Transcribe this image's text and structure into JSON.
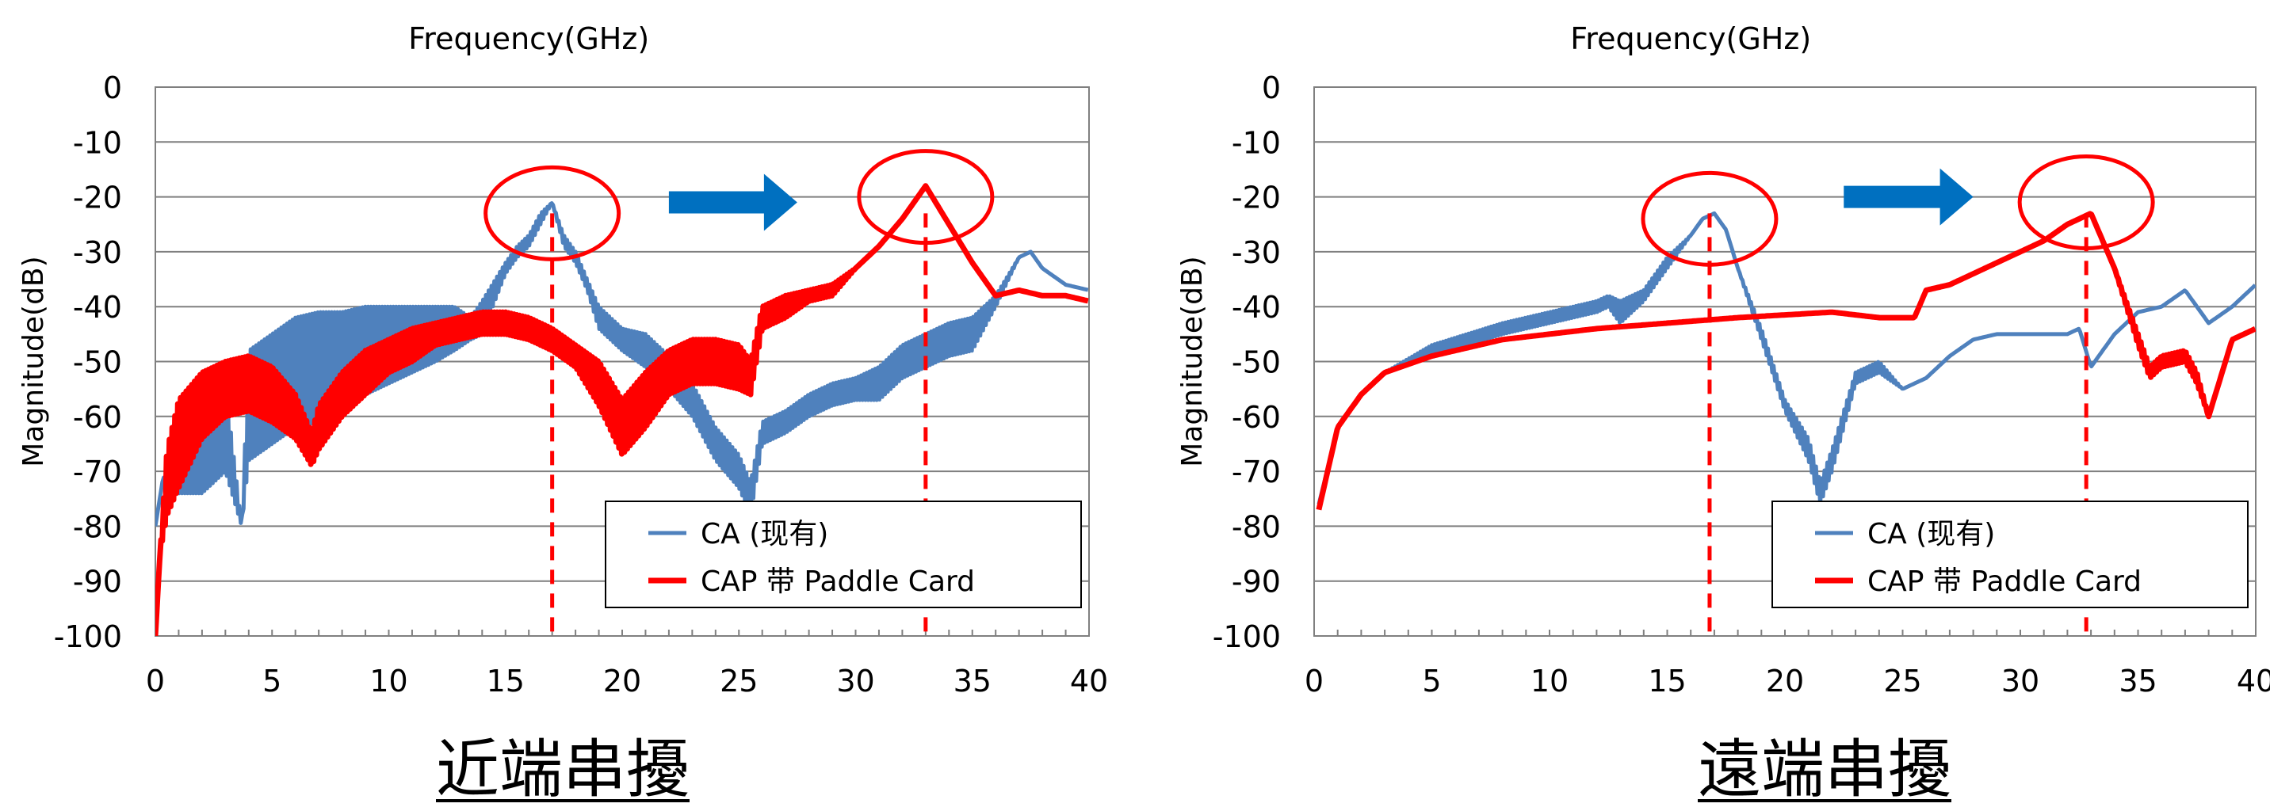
{
  "chart_data": [
    {
      "type": "line",
      "xlabel": "Frequency(GHz)",
      "ylabel": "Magnitude(dB)",
      "xlim": [
        0,
        40
      ],
      "ylim": [
        -100,
        0
      ],
      "xticks": [
        "0",
        "5",
        "10",
        "15",
        "20",
        "25",
        "30",
        "35",
        "40"
      ],
      "yticks": [
        "0",
        "-10",
        "-20",
        "-30",
        "-40",
        "-50",
        "-60",
        "-70",
        "-80",
        "-90",
        "-100"
      ],
      "grid": "horizontal",
      "legend": "bottom-right",
      "caption": "近端串擾",
      "series": [
        {
          "name": "CA (现有)",
          "color": "#4F81BD",
          "x": [
            0,
            0.3,
            1,
            2,
            3,
            3.7,
            4,
            5,
            6,
            7,
            8,
            9,
            10,
            11,
            12,
            12.8,
            13.5,
            14,
            15,
            15.5,
            16,
            16.5,
            17,
            17.5,
            18,
            18.5,
            19,
            20,
            21,
            22,
            23,
            24,
            25,
            25.5,
            26,
            27,
            28,
            29,
            30,
            31,
            32,
            33,
            34,
            35,
            36,
            37,
            37.5,
            38,
            39,
            40
          ],
          "y": [
            -80,
            -72,
            -68,
            -66,
            -62,
            -80,
            -58,
            -55,
            -52,
            -51,
            -50,
            -48,
            -47,
            -46,
            -45,
            -44,
            -44,
            -42,
            -33,
            -30,
            -28,
            -24,
            -21,
            -28,
            -31,
            -36,
            -42,
            -46,
            -48,
            -52,
            -57,
            -65,
            -70,
            -75,
            -63,
            -61,
            -58,
            -56,
            -55,
            -54,
            -50,
            -48,
            -46,
            -45,
            -39,
            -31,
            -30,
            -33,
            -36,
            -37
          ],
          "noise": [
            0,
            0,
            6,
            8,
            8,
            0,
            10,
            10,
            10,
            10,
            9,
            8,
            7,
            6,
            5,
            4,
            2,
            3,
            1,
            1,
            1,
            1,
            0,
            1,
            1,
            1,
            2,
            2,
            3,
            3,
            3,
            3,
            3,
            3,
            2,
            2,
            2,
            2,
            2,
            3,
            3,
            3,
            3,
            3,
            1,
            0,
            0,
            0,
            0,
            0
          ]
        },
        {
          "name": "CAP 带 Paddle Card",
          "color": "#FF0000",
          "x": [
            0,
            0.2,
            0.5,
            1,
            2,
            3,
            4,
            5,
            6,
            6.7,
            7,
            8,
            9,
            10,
            11,
            12,
            13,
            14,
            15,
            16,
            17,
            18,
            19,
            20,
            21,
            22,
            23,
            24,
            25,
            25.5,
            26,
            27,
            28,
            29,
            30,
            31,
            32,
            33,
            34,
            35,
            36,
            37,
            38,
            39,
            40
          ],
          "y": [
            -100,
            -85,
            -72,
            -65,
            -58,
            -55,
            -54,
            -56,
            -60,
            -66,
            -62,
            -56,
            -52,
            -49,
            -47,
            -45,
            -44,
            -43,
            -43,
            -44,
            -46,
            -49,
            -54,
            -62,
            -57,
            -52,
            -50,
            -50,
            -51,
            -53,
            -42,
            -40,
            -38,
            -37,
            -33,
            -29,
            -24,
            -18,
            -25,
            -32,
            -38,
            -37,
            -38,
            -38,
            -39
          ],
          "noise": [
            0,
            0,
            6,
            8,
            6,
            5,
            5,
            5,
            4,
            3,
            4,
            4,
            4,
            3,
            3,
            2,
            2,
            2,
            2,
            2,
            2,
            2,
            4,
            5,
            5,
            4,
            4,
            4,
            4,
            3,
            2,
            2,
            1,
            1,
            0,
            0,
            0,
            0,
            0,
            0,
            0,
            0,
            0,
            0,
            0
          ]
        }
      ],
      "annotations": {
        "circles": [
          {
            "x": 17,
            "y": -23
          },
          {
            "x": 33,
            "y": -20
          }
        ],
        "vlines": [
          17,
          33
        ],
        "arrow": {
          "from": 22,
          "to": 27.5,
          "y": -21
        },
        "arrow_color": "#0070C0"
      }
    },
    {
      "type": "line",
      "xlabel": "Frequency(GHz)",
      "ylabel": "Magnitude(dB)",
      "xlim": [
        0,
        40
      ],
      "ylim": [
        -100,
        0
      ],
      "xticks": [
        "0",
        "5",
        "10",
        "15",
        "20",
        "25",
        "30",
        "35",
        "40"
      ],
      "yticks": [
        "0",
        "-10",
        "-20",
        "-30",
        "-40",
        "-50",
        "-60",
        "-70",
        "-80",
        "-90",
        "-100"
      ],
      "grid": "horizontal",
      "legend": "bottom-right",
      "caption": "遠端串擾",
      "series": [
        {
          "name": "CA (现有)",
          "color": "#4F81BD",
          "x": [
            0.2,
            1,
            2,
            3,
            5,
            8,
            10,
            12,
            12.5,
            13,
            14,
            15,
            16,
            16.5,
            17,
            17.5,
            18,
            19,
            20,
            21,
            21.5,
            22,
            23,
            24,
            25,
            26,
            27,
            28,
            29,
            30,
            31,
            32,
            32.5,
            33,
            34,
            35,
            36,
            37,
            37.5,
            38,
            39,
            40
          ],
          "y": [
            -76,
            -62,
            -56,
            -52,
            -48,
            -44,
            -42,
            -40,
            -39,
            -41,
            -38,
            -32,
            -27,
            -24,
            -23,
            -26,
            -33,
            -45,
            -58,
            -66,
            -74,
            -68,
            -53,
            -51,
            -55,
            -53,
            -49,
            -46,
            -45,
            -45,
            -45,
            -45,
            -44,
            -51,
            -45,
            -41,
            -40,
            -37,
            -40,
            -43,
            -40,
            -36
          ],
          "noise": [
            0,
            0,
            0,
            0,
            1,
            1,
            1,
            1,
            1,
            2,
            1,
            1,
            0,
            0,
            0,
            0,
            0,
            1,
            1,
            2,
            2,
            2,
            1,
            1,
            0,
            0,
            0,
            0,
            0,
            0,
            0,
            0,
            0,
            0,
            0,
            0,
            0,
            0,
            0,
            0,
            0,
            0
          ]
        },
        {
          "name": "CAP 带  Paddle Card",
          "color": "#FF0000",
          "x": [
            0.2,
            1,
            2,
            3,
            5,
            8,
            10,
            12,
            15,
            18,
            20,
            22,
            24,
            25.5,
            26,
            27,
            28,
            29,
            30,
            31,
            32,
            33,
            34,
            35,
            35.5,
            36,
            37,
            37.5,
            38,
            39,
            40
          ],
          "y": [
            -77,
            -62,
            -56,
            -52,
            -49,
            -46,
            -45,
            -44,
            -43,
            -42,
            -41.5,
            -41,
            -42,
            -42,
            -37,
            -36,
            -34,
            -32,
            -30,
            -28,
            -25,
            -23,
            -33,
            -46,
            -52,
            -50,
            -49,
            -53,
            -60,
            -46,
            -44
          ],
          "noise": [
            0,
            0,
            0,
            0,
            0,
            0,
            0,
            0,
            0,
            0,
            0,
            0,
            0,
            0,
            0,
            0,
            0,
            0,
            0,
            0,
            0,
            0,
            0,
            1,
            1,
            1,
            1,
            1,
            0,
            0,
            0
          ]
        }
      ],
      "annotations": {
        "circles": [
          {
            "x": 16.8,
            "y": -24
          },
          {
            "x": 32.8,
            "y": -21
          }
        ],
        "vlines": [
          16.8,
          32.8
        ],
        "arrow": {
          "from": 22.5,
          "to": 28,
          "y": -20
        },
        "arrow_color": "#0070C0"
      }
    }
  ]
}
